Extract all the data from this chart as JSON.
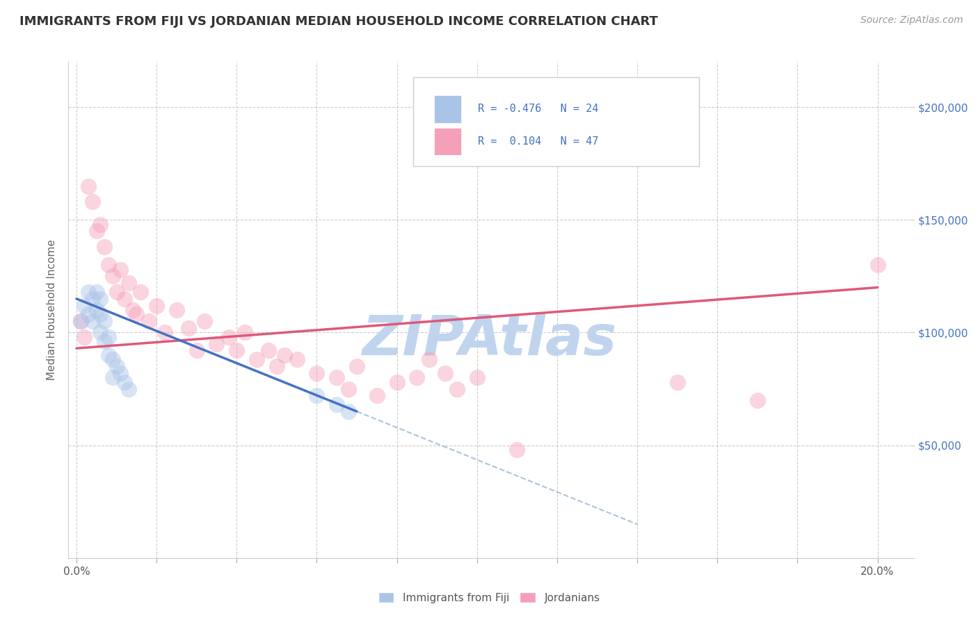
{
  "title": "IMMIGRANTS FROM FIJI VS JORDANIAN MEDIAN HOUSEHOLD INCOME CORRELATION CHART",
  "source": "Source: ZipAtlas.com",
  "ylabel": "Median Household Income",
  "x_ticks": [
    0.0,
    0.02,
    0.04,
    0.06,
    0.08,
    0.1,
    0.12,
    0.14,
    0.16,
    0.18,
    0.2
  ],
  "y_ticks": [
    0,
    50000,
    100000,
    150000,
    200000
  ],
  "xlim": [
    -0.002,
    0.208
  ],
  "ylim": [
    0,
    220000
  ],
  "fiji_R": -0.476,
  "fiji_N": 24,
  "jordan_R": 0.104,
  "jordan_N": 47,
  "fiji_color": "#aac4e8",
  "jordan_color": "#f4a0b8",
  "fiji_line_color": "#4472c4",
  "jordan_line_color": "#e05878",
  "fiji_scatter_x": [
    0.001,
    0.002,
    0.003,
    0.003,
    0.004,
    0.004,
    0.005,
    0.005,
    0.006,
    0.006,
    0.006,
    0.007,
    0.007,
    0.008,
    0.008,
    0.009,
    0.009,
    0.01,
    0.011,
    0.012,
    0.013,
    0.06,
    0.065,
    0.068
  ],
  "fiji_scatter_y": [
    105000,
    112000,
    118000,
    108000,
    115000,
    105000,
    118000,
    110000,
    115000,
    108000,
    100000,
    105000,
    96000,
    98000,
    90000,
    88000,
    80000,
    85000,
    82000,
    78000,
    75000,
    72000,
    68000,
    65000
  ],
  "jordan_scatter_x": [
    0.001,
    0.002,
    0.003,
    0.004,
    0.005,
    0.006,
    0.007,
    0.008,
    0.009,
    0.01,
    0.011,
    0.012,
    0.013,
    0.014,
    0.015,
    0.016,
    0.018,
    0.02,
    0.022,
    0.025,
    0.028,
    0.03,
    0.032,
    0.035,
    0.038,
    0.04,
    0.042,
    0.045,
    0.048,
    0.05,
    0.052,
    0.055,
    0.06,
    0.065,
    0.068,
    0.07,
    0.075,
    0.08,
    0.085,
    0.088,
    0.092,
    0.095,
    0.1,
    0.11,
    0.15,
    0.17,
    0.2
  ],
  "jordan_scatter_y": [
    105000,
    98000,
    165000,
    158000,
    145000,
    148000,
    138000,
    130000,
    125000,
    118000,
    128000,
    115000,
    122000,
    110000,
    108000,
    118000,
    105000,
    112000,
    100000,
    110000,
    102000,
    92000,
    105000,
    95000,
    98000,
    92000,
    100000,
    88000,
    92000,
    85000,
    90000,
    88000,
    82000,
    80000,
    75000,
    85000,
    72000,
    78000,
    80000,
    88000,
    82000,
    75000,
    80000,
    48000,
    78000,
    70000,
    130000
  ],
  "grid_color": "#cccccc",
  "background_color": "#ffffff",
  "watermark": "ZIPAtlas",
  "watermark_color": "#c0d4ee",
  "title_fontsize": 13,
  "axis_label_fontsize": 11,
  "tick_fontsize": 11,
  "legend_fontsize": 12,
  "source_fontsize": 10,
  "scatter_size": 280,
  "scatter_alpha": 0.45
}
